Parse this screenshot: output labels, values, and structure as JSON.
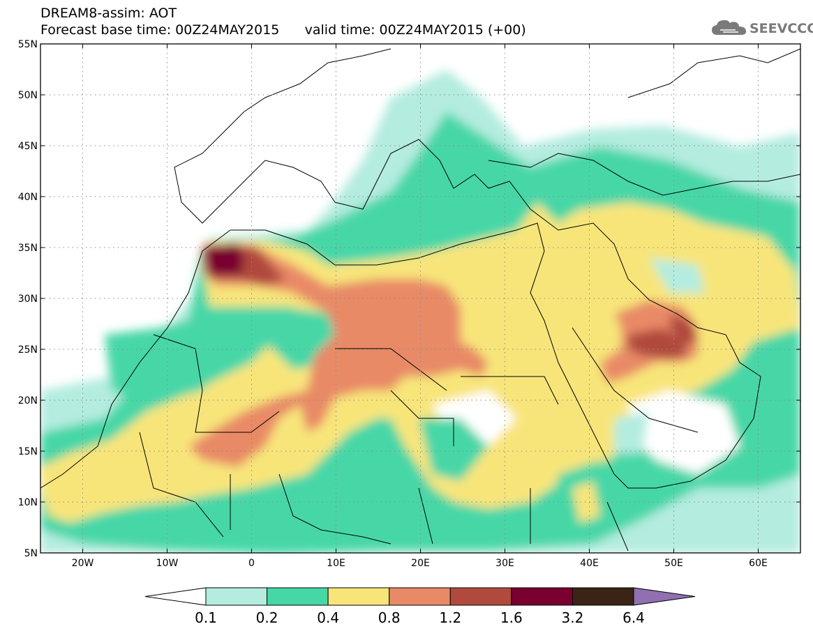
{
  "header": {
    "title": "DREAM8-assim: AOT",
    "base_label": "Forecast base time: 00Z24MAY2015",
    "valid_label": "valid time: 00Z24MAY2015 (+00)"
  },
  "logo": {
    "text": "SEEVCCC",
    "icon": "cloud-icon"
  },
  "map": {
    "lon_range": [
      -25,
      65
    ],
    "lat_range": [
      5,
      55
    ],
    "lat_ticks": [
      {
        "value": 55,
        "label": "55N"
      },
      {
        "value": 50,
        "label": "50N"
      },
      {
        "value": 45,
        "label": "45N"
      },
      {
        "value": 40,
        "label": "40N"
      },
      {
        "value": 35,
        "label": "35N"
      },
      {
        "value": 30,
        "label": "30N"
      },
      {
        "value": 25,
        "label": "25N"
      },
      {
        "value": 20,
        "label": "20N"
      },
      {
        "value": 15,
        "label": "15N"
      },
      {
        "value": 10,
        "label": "10N"
      },
      {
        "value": 5,
        "label": "5N"
      }
    ],
    "lon_ticks": [
      {
        "value": -20,
        "label": "20W"
      },
      {
        "value": -10,
        "label": "10W"
      },
      {
        "value": 0,
        "label": "0"
      },
      {
        "value": 10,
        "label": "10E"
      },
      {
        "value": 20,
        "label": "20E"
      },
      {
        "value": 30,
        "label": "30E"
      },
      {
        "value": 40,
        "label": "40E"
      },
      {
        "value": 50,
        "label": "50E"
      },
      {
        "value": 60,
        "label": "60E"
      }
    ],
    "gridlines": "dotted"
  },
  "colorbar": {
    "levels": [
      "0.1",
      "0.2",
      "0.4",
      "0.8",
      "1.2",
      "1.6",
      "3.2",
      "6.4"
    ],
    "colors": [
      "#ffffff",
      "#b4ece0",
      "#46d7a7",
      "#f8e57a",
      "#e88a66",
      "#b04a3d",
      "#7a0030",
      "#3b2415",
      "#9070b0"
    ]
  }
}
